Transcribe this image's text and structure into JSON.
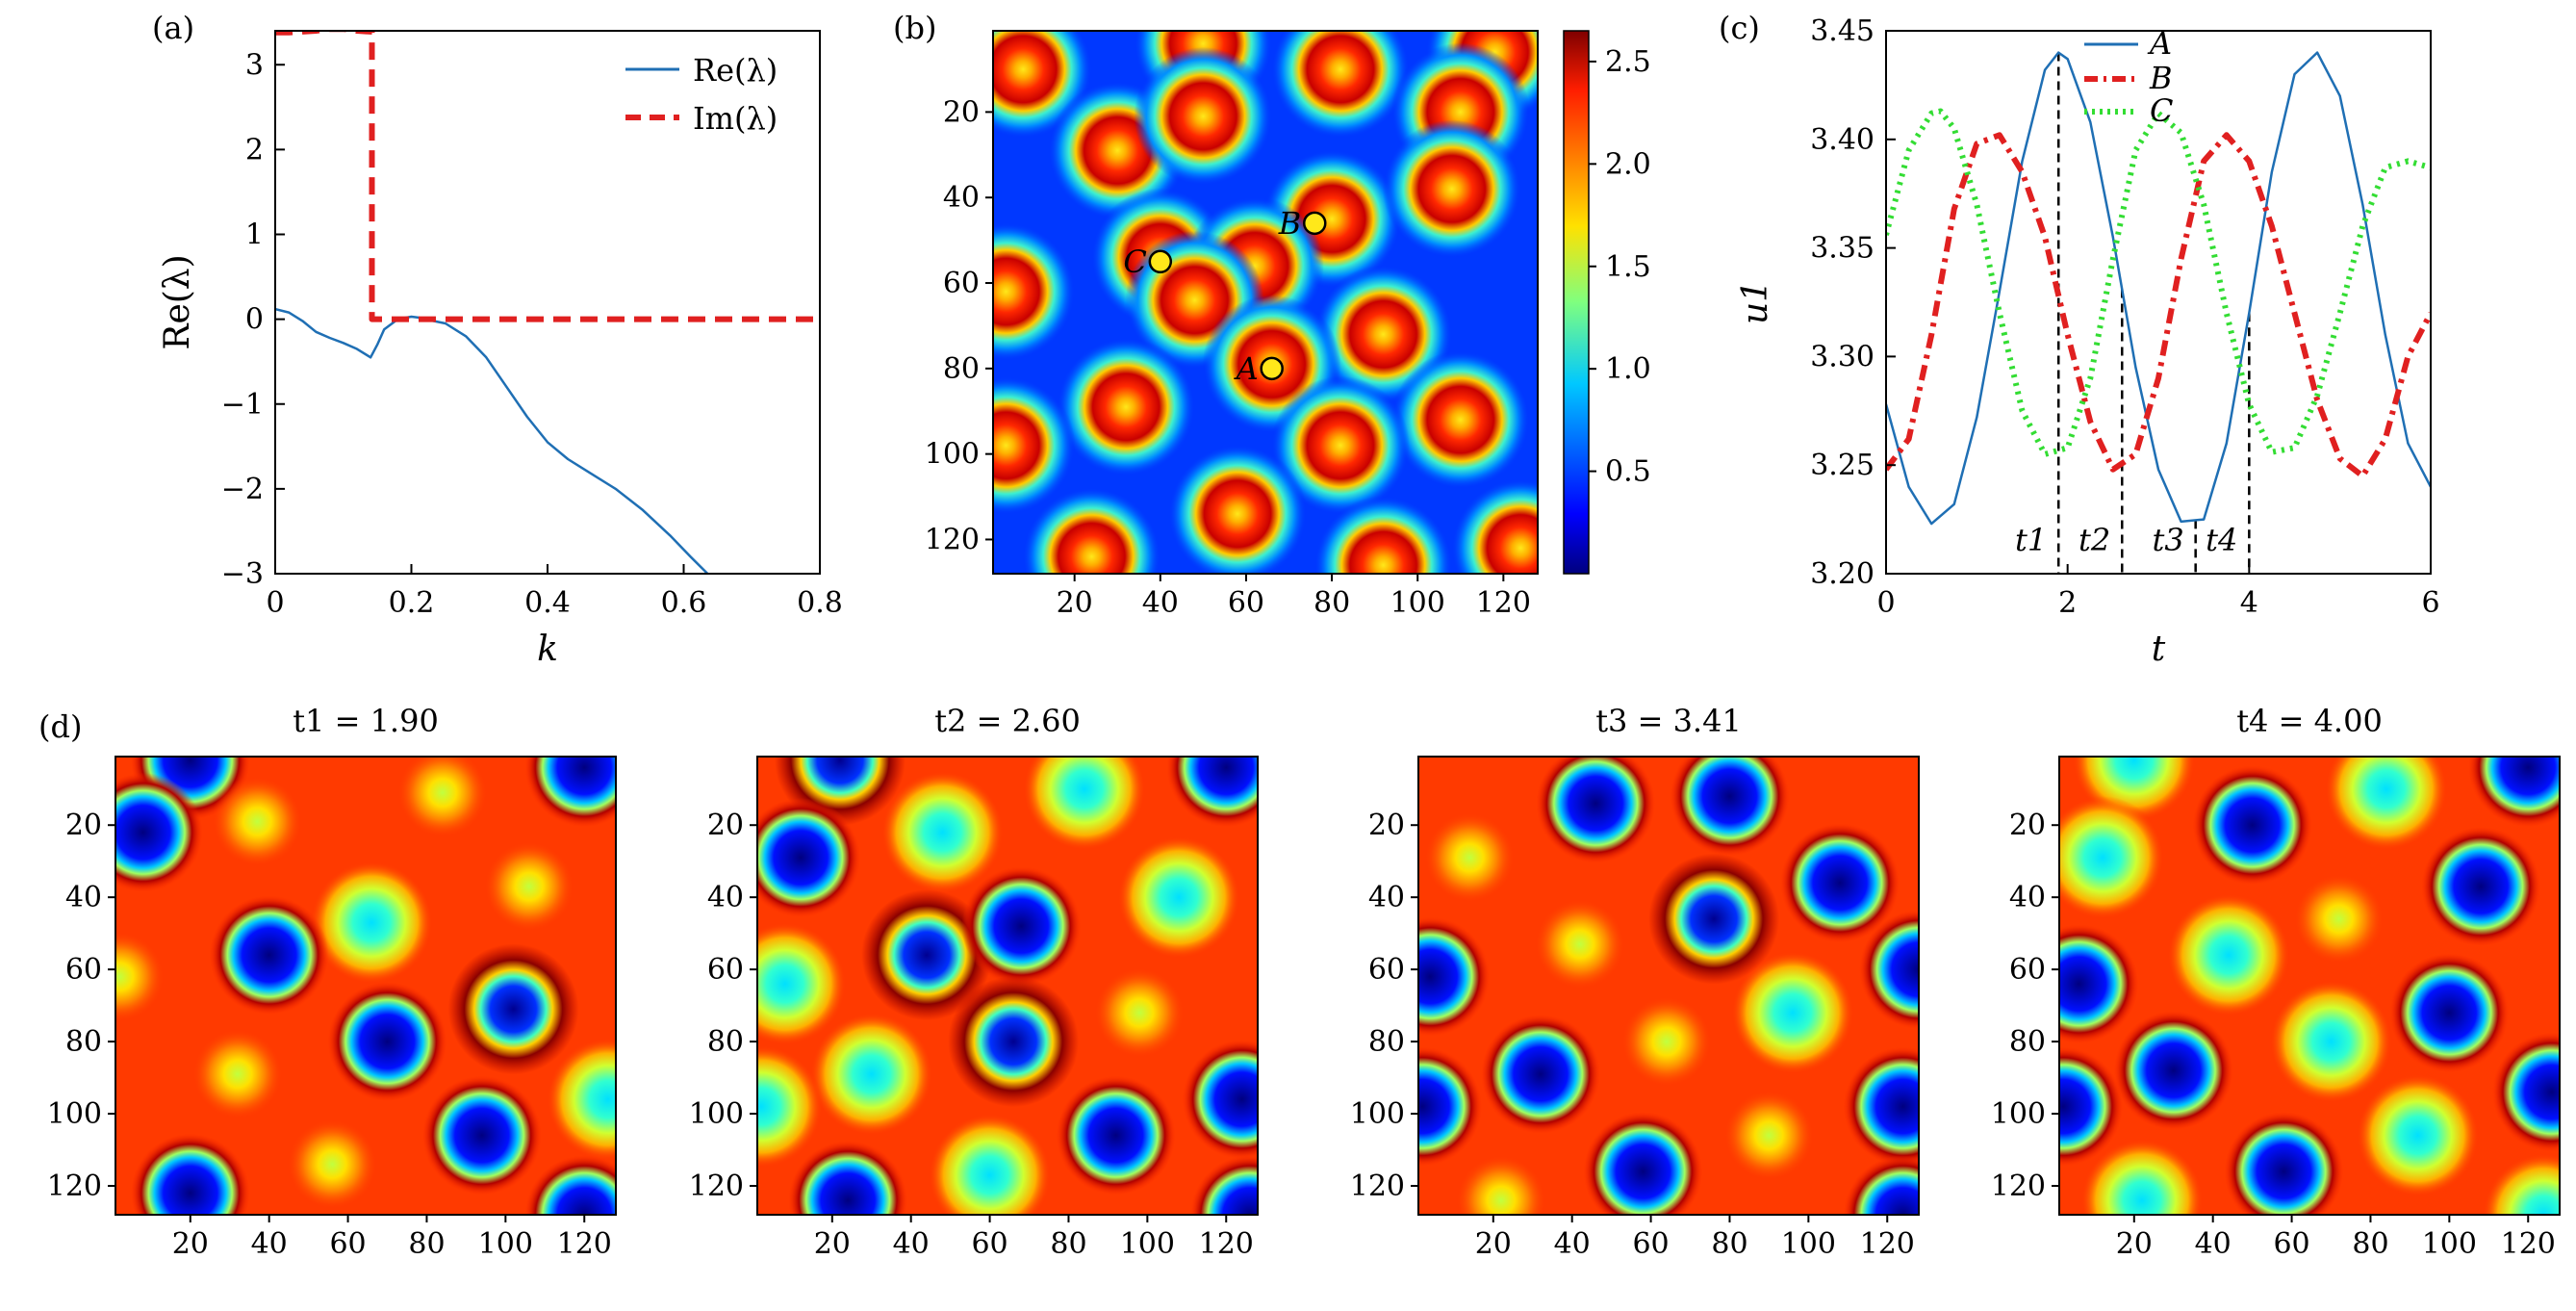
{
  "figure": {
    "panel_a_label": "(a)",
    "panel_b_label": "(b)",
    "panel_c_label": "(c)",
    "panel_d_label": "(d)"
  },
  "chart_data": [
    {
      "id": "a",
      "type": "line",
      "xlabel": "k",
      "ylabel": "Re(λ)",
      "xlim": [
        0,
        0.8
      ],
      "ylim": [
        -3,
        3.4
      ],
      "xticks": [
        "0",
        "0.2",
        "0.4",
        "0.6",
        "0.8"
      ],
      "yticks": [
        "−3",
        "−2",
        "−1",
        "0",
        "1",
        "2",
        "3"
      ],
      "legend_position": "top-right",
      "series": [
        {
          "name": "Re(λ)",
          "style": "solid",
          "color": "#1f6fb4",
          "x": [
            0,
            0.02,
            0.04,
            0.06,
            0.08,
            0.1,
            0.12,
            0.14,
            0.15,
            0.16,
            0.18,
            0.2,
            0.21,
            0.22,
            0.25,
            0.28,
            0.31,
            0.34,
            0.37,
            0.4,
            0.43,
            0.46,
            0.5,
            0.54,
            0.58,
            0.61,
            0.635
          ],
          "y": [
            0.12,
            0.08,
            -0.02,
            -0.15,
            -0.22,
            -0.28,
            -0.35,
            -0.45,
            -0.3,
            -0.12,
            0.0,
            0.03,
            0.02,
            0.0,
            -0.05,
            -0.2,
            -0.45,
            -0.8,
            -1.15,
            -1.45,
            -1.65,
            -1.8,
            -2.0,
            -2.25,
            -2.55,
            -2.8,
            -3.0
          ]
        },
        {
          "name": "Im(λ)",
          "style": "dashed",
          "color": "#e02020",
          "x": [
            0,
            0.02,
            0.04,
            0.06,
            0.08,
            0.1,
            0.12,
            0.14,
            0.142,
            0.142,
            0.2,
            0.4,
            0.6,
            0.8
          ],
          "y": [
            3.38,
            3.38,
            3.39,
            3.4,
            3.42,
            3.42,
            3.4,
            3.39,
            3.39,
            0.0,
            0.0,
            0.0,
            0.0,
            0.0
          ]
        }
      ]
    },
    {
      "id": "b",
      "type": "heatmap",
      "xlim": [
        1,
        128
      ],
      "ylim": [
        128,
        1
      ],
      "xticks": [
        "20",
        "40",
        "60",
        "80",
        "100",
        "120"
      ],
      "yticks": [
        "20",
        "40",
        "60",
        "80",
        "100",
        "120"
      ],
      "colorbar_ticks": [
        "0.5",
        "1.0",
        "1.5",
        "2.0",
        "2.5"
      ],
      "colorbar_range": [
        0,
        2.65
      ],
      "colormap": "jet",
      "spots": [
        [
          8,
          10
        ],
        [
          50,
          4
        ],
        [
          82,
          10
        ],
        [
          118,
          6
        ],
        [
          30,
          29
        ],
        [
          50,
          21
        ],
        [
          110,
          20
        ],
        [
          80,
          45
        ],
        [
          40,
          54
        ],
        [
          108,
          38
        ],
        [
          4,
          62
        ],
        [
          62,
          56
        ],
        [
          92,
          72
        ],
        [
          48,
          64
        ],
        [
          66,
          79
        ],
        [
          32,
          89
        ],
        [
          110,
          92
        ],
        [
          82,
          98
        ],
        [
          4,
          98
        ],
        [
          58,
          114
        ],
        [
          24,
          124
        ],
        [
          92,
          126
        ],
        [
          124,
          122
        ]
      ],
      "markers": [
        {
          "label": "A",
          "x": 66,
          "y": 80
        },
        {
          "label": "B",
          "x": 76,
          "y": 46
        },
        {
          "label": "C",
          "x": 40,
          "y": 55
        }
      ]
    },
    {
      "id": "c",
      "type": "line",
      "xlabel": "t",
      "ylabel": "u1",
      "xlim": [
        0,
        6
      ],
      "ylim": [
        3.2,
        3.45
      ],
      "xticks": [
        "0",
        "2",
        "4",
        "6"
      ],
      "yticks": [
        "3.20",
        "3.25",
        "3.30",
        "3.35",
        "3.40",
        "3.45"
      ],
      "legend_position": "top-center",
      "vlines": [
        1.9,
        2.6,
        3.41,
        4.0
      ],
      "vline_labels": [
        "t1",
        "t2",
        "t3",
        "t4"
      ],
      "series": [
        {
          "name": "A",
          "style": "solid",
          "color": "#1f6fb4",
          "x": [
            0,
            0.25,
            0.5,
            0.75,
            1.0,
            1.25,
            1.5,
            1.75,
            1.9,
            2.0,
            2.25,
            2.5,
            2.75,
            3.0,
            3.25,
            3.5,
            3.75,
            4.0,
            4.25,
            4.5,
            4.75,
            5.0,
            5.25,
            5.5,
            5.75,
            6.0
          ],
          "y": [
            3.278,
            3.24,
            3.223,
            3.232,
            3.272,
            3.33,
            3.39,
            3.432,
            3.44,
            3.437,
            3.408,
            3.355,
            3.295,
            3.248,
            3.224,
            3.225,
            3.26,
            3.32,
            3.385,
            3.43,
            3.44,
            3.42,
            3.37,
            3.31,
            3.26,
            3.24
          ]
        },
        {
          "name": "B",
          "style": "dashdot",
          "color": "#e02020",
          "x": [
            0,
            0.25,
            0.5,
            0.75,
            1.0,
            1.25,
            1.5,
            1.75,
            2.0,
            2.25,
            2.5,
            2.75,
            3.0,
            3.25,
            3.5,
            3.75,
            4.0,
            4.25,
            4.5,
            4.75,
            5.0,
            5.25,
            5.5,
            5.75,
            6.0
          ],
          "y": [
            3.248,
            3.262,
            3.31,
            3.368,
            3.398,
            3.402,
            3.385,
            3.355,
            3.31,
            3.27,
            3.248,
            3.255,
            3.29,
            3.345,
            3.39,
            3.402,
            3.39,
            3.36,
            3.32,
            3.28,
            3.253,
            3.245,
            3.262,
            3.3,
            3.32
          ]
        },
        {
          "name": "C",
          "style": "dotted",
          "color": "#33dd33",
          "x": [
            0,
            0.25,
            0.5,
            0.6,
            0.75,
            1.0,
            1.25,
            1.5,
            1.75,
            2.0,
            2.25,
            2.5,
            2.75,
            3.0,
            3.25,
            3.5,
            3.75,
            4.0,
            4.25,
            4.5,
            4.75,
            5.0,
            5.25,
            5.5,
            5.75,
            6.0
          ],
          "y": [
            3.356,
            3.395,
            3.412,
            3.413,
            3.405,
            3.37,
            3.32,
            3.275,
            3.255,
            3.258,
            3.29,
            3.345,
            3.395,
            3.412,
            3.403,
            3.37,
            3.32,
            3.278,
            3.256,
            3.258,
            3.282,
            3.32,
            3.36,
            3.387,
            3.39,
            3.387
          ]
        }
      ]
    },
    {
      "id": "d1",
      "type": "heatmap",
      "title": "t1 = 1.90",
      "xlim": [
        1,
        128
      ],
      "ylim": [
        128,
        1
      ],
      "xticks": [
        "20",
        "40",
        "60",
        "80",
        "100",
        "120"
      ],
      "yticks": [
        "20",
        "40",
        "60",
        "80",
        "100",
        "120"
      ],
      "colormap": "jet",
      "spots": [
        [
          20,
          2,
          0
        ],
        [
          8,
          22,
          0
        ],
        [
          37,
          19,
          2
        ],
        [
          120,
          4,
          0
        ],
        [
          84,
          11,
          2
        ],
        [
          66,
          47,
          1
        ],
        [
          40,
          56,
          0
        ],
        [
          106,
          37,
          2
        ],
        [
          2,
          62,
          2
        ],
        [
          70,
          80,
          0
        ],
        [
          102,
          71,
          3
        ],
        [
          32,
          89,
          2
        ],
        [
          20,
          122,
          0
        ],
        [
          56,
          114,
          2
        ],
        [
          94,
          106,
          0
        ],
        [
          120,
          128,
          0
        ],
        [
          126,
          96,
          1
        ]
      ]
    },
    {
      "id": "d2",
      "type": "heatmap",
      "title": "t2 = 2.60",
      "xlim": [
        1,
        128
      ],
      "ylim": [
        128,
        1
      ],
      "xticks": [
        "20",
        "40",
        "60",
        "80",
        "100",
        "120"
      ],
      "yticks": [
        "20",
        "40",
        "60",
        "80",
        "100",
        "120"
      ],
      "colormap": "jet",
      "spots": [
        [
          22,
          2,
          3
        ],
        [
          12,
          29,
          0
        ],
        [
          48,
          22,
          1
        ],
        [
          84,
          10,
          1
        ],
        [
          120,
          4,
          0
        ],
        [
          108,
          40,
          1
        ],
        [
          44,
          56,
          3
        ],
        [
          68,
          48,
          0
        ],
        [
          8,
          64,
          1
        ],
        [
          66,
          80,
          3
        ],
        [
          98,
          72,
          2
        ],
        [
          30,
          89,
          1
        ],
        [
          2,
          98,
          1
        ],
        [
          92,
          106,
          0
        ],
        [
          124,
          96,
          0
        ],
        [
          60,
          117,
          1
        ],
        [
          24,
          124,
          0
        ],
        [
          126,
          128,
          0
        ]
      ]
    },
    {
      "id": "d3",
      "type": "heatmap",
      "title": "t3 = 3.41",
      "xlim": [
        1,
        128
      ],
      "ylim": [
        128,
        1
      ],
      "xticks": [
        "20",
        "40",
        "60",
        "80",
        "100",
        "120"
      ],
      "yticks": [
        "20",
        "40",
        "60",
        "80",
        "100",
        "120"
      ],
      "colormap": "jet",
      "spots": [
        [
          46,
          14,
          0
        ],
        [
          80,
          12,
          0
        ],
        [
          108,
          36,
          0
        ],
        [
          14,
          29,
          2
        ],
        [
          42,
          53,
          2
        ],
        [
          76,
          46,
          3
        ],
        [
          4,
          62,
          0
        ],
        [
          96,
          72,
          1
        ],
        [
          32,
          89,
          0
        ],
        [
          64,
          80,
          2
        ],
        [
          124,
          98,
          0
        ],
        [
          2,
          98,
          0
        ],
        [
          90,
          106,
          2
        ],
        [
          58,
          116,
          0
        ],
        [
          22,
          124,
          2
        ],
        [
          128,
          60,
          0
        ],
        [
          124,
          128,
          0
        ]
      ]
    },
    {
      "id": "d4",
      "type": "heatmap",
      "title": "t4 = 4.00",
      "xlim": [
        1,
        128
      ],
      "ylim": [
        128,
        1
      ],
      "xticks": [
        "20",
        "40",
        "60",
        "80",
        "100",
        "120"
      ],
      "yticks": [
        "20",
        "40",
        "60",
        "80",
        "100",
        "120"
      ],
      "colormap": "jet",
      "spots": [
        [
          20,
          2,
          1
        ],
        [
          12,
          29,
          1
        ],
        [
          50,
          20,
          0
        ],
        [
          84,
          10,
          1
        ],
        [
          120,
          4,
          0
        ],
        [
          108,
          37,
          0
        ],
        [
          44,
          56,
          1
        ],
        [
          72,
          46,
          2
        ],
        [
          6,
          64,
          0
        ],
        [
          70,
          80,
          1
        ],
        [
          100,
          72,
          0
        ],
        [
          30,
          88,
          0
        ],
        [
          2,
          98,
          0
        ],
        [
          92,
          106,
          1
        ],
        [
          126,
          94,
          0
        ],
        [
          58,
          116,
          0
        ],
        [
          22,
          124,
          1
        ],
        [
          124,
          128,
          1
        ]
      ]
    }
  ]
}
